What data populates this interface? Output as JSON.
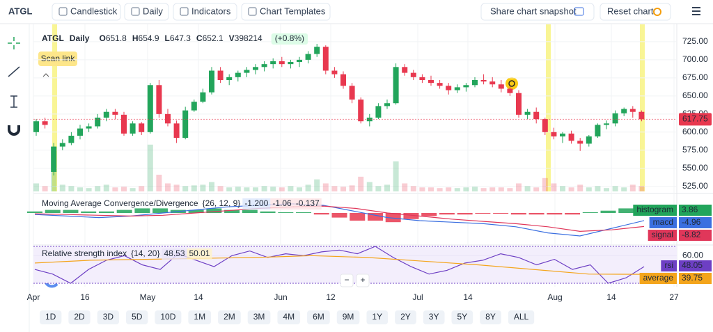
{
  "toolbar": {
    "symbol": "ATGL",
    "buttons": [
      "Candlestick",
      "Daily",
      "Indicators",
      "Chart Templates"
    ],
    "share": "Share chart snapshot",
    "reset": "Reset chart"
  },
  "scan_link": "Scan link",
  "zoom": [
    "−",
    "+"
  ],
  "ranges": [
    "1D",
    "2D",
    "3D",
    "5D",
    "10D",
    "1M",
    "2M",
    "3M",
    "4M",
    "6M",
    "9M",
    "1Y",
    "2Y",
    "3Y",
    "5Y",
    "8Y",
    "ALL"
  ],
  "chart_data": [
    {
      "type": "candlestick",
      "symbol": "ATGL",
      "interval": "Daily",
      "ohlcv": [
        {
          "label": "O",
          "value": 651.8
        },
        {
          "label": "H",
          "value": 654.9
        },
        {
          "label": "L",
          "value": 647.3
        },
        {
          "label": "C",
          "value": 652.1
        },
        {
          "label": "V",
          "value": 398214
        }
      ],
      "change": "(+0.8%)",
      "up_color": "#22a55b",
      "down_color": "#e8384f",
      "ohlc": [
        [
          600,
          618,
          595,
          615
        ],
        [
          615,
          620,
          605,
          610
        ],
        [
          545,
          585,
          540,
          580
        ],
        [
          580,
          590,
          575,
          585
        ],
        [
          585,
          600,
          582,
          595
        ],
        [
          595,
          610,
          590,
          605
        ],
        [
          605,
          612,
          600,
          608
        ],
        [
          608,
          625,
          605,
          620
        ],
        [
          620,
          632,
          615,
          628
        ],
        [
          628,
          632,
          618,
          624
        ],
        [
          624,
          628,
          595,
          598
        ],
        [
          598,
          615,
          595,
          612
        ],
        [
          612,
          614,
          596,
          600
        ],
        [
          600,
          668,
          598,
          665
        ],
        [
          665,
          672,
          620,
          625
        ],
        [
          625,
          632,
          608,
          612
        ],
        [
          612,
          616,
          585,
          592
        ],
        [
          592,
          635,
          590,
          630
        ],
        [
          630,
          645,
          628,
          642
        ],
        [
          642,
          660,
          640,
          655
        ],
        [
          655,
          690,
          652,
          685
        ],
        [
          685,
          690,
          668,
          672
        ],
        [
          672,
          680,
          665,
          676
        ],
        [
          676,
          685,
          670,
          682
        ],
        [
          682,
          690,
          676,
          686
        ],
        [
          686,
          694,
          680,
          690
        ],
        [
          690,
          698,
          684,
          694
        ],
        [
          694,
          702,
          688,
          698
        ],
        [
          698,
          704,
          690,
          694
        ],
        [
          694,
          700,
          688,
          697
        ],
        [
          697,
          704,
          690,
          700
        ],
        [
          700,
          712,
          695,
          708
        ],
        [
          708,
          722,
          704,
          718
        ],
        [
          718,
          720,
          680,
          685
        ],
        [
          685,
          690,
          675,
          680
        ],
        [
          680,
          684,
          660,
          664
        ],
        [
          664,
          668,
          640,
          645
        ],
        [
          645,
          648,
          612,
          615
        ],
        [
          615,
          625,
          608,
          620
        ],
        [
          620,
          640,
          618,
          636
        ],
        [
          636,
          645,
          632,
          640
        ],
        [
          640,
          695,
          638,
          690
        ],
        [
          690,
          694,
          678,
          682
        ],
        [
          682,
          686,
          672,
          676
        ],
        [
          676,
          680,
          668,
          672
        ],
        [
          672,
          678,
          664,
          668
        ],
        [
          668,
          672,
          660,
          664
        ],
        [
          664,
          668,
          652,
          658
        ],
        [
          658,
          666,
          654,
          662
        ],
        [
          662,
          668,
          656,
          665
        ],
        [
          665,
          676,
          662,
          672
        ],
        [
          672,
          680,
          666,
          670
        ],
        [
          670,
          676,
          662,
          666
        ],
        [
          666,
          672,
          655,
          660
        ],
        [
          660,
          664,
          650,
          654
        ],
        [
          654,
          658,
          620,
          624
        ],
        [
          624,
          632,
          618,
          628
        ],
        [
          628,
          634,
          612,
          618
        ],
        [
          618,
          620,
          596,
          600
        ],
        [
          600,
          606,
          590,
          594
        ],
        [
          594,
          600,
          585,
          598
        ],
        [
          598,
          602,
          584,
          588
        ],
        [
          588,
          592,
          574,
          584
        ],
        [
          584,
          596,
          580,
          594
        ],
        [
          594,
          612,
          592,
          610
        ],
        [
          610,
          616,
          604,
          612
        ],
        [
          612,
          630,
          608,
          626
        ],
        [
          626,
          634,
          622,
          632
        ],
        [
          632,
          636,
          620,
          628
        ],
        [
          628,
          630,
          615,
          617.75
        ]
      ],
      "volume": [
        12,
        8,
        30,
        10,
        8,
        6,
        5,
        8,
        10,
        6,
        7,
        5,
        8,
        70,
        25,
        12,
        10,
        8,
        9,
        10,
        14,
        8,
        6,
        7,
        6,
        6,
        8,
        7,
        6,
        8,
        6,
        10,
        18,
        12,
        8,
        7,
        9,
        22,
        14,
        8,
        10,
        45,
        12,
        8,
        6,
        6,
        5,
        6,
        5,
        6,
        7,
        5,
        6,
        6,
        5,
        12,
        8,
        6,
        20,
        12,
        8,
        6,
        10,
        6,
        8,
        5,
        8,
        6,
        10,
        8
      ],
      "volume_ylim": [
        0,
        250
      ],
      "ylim": [
        518,
        749
      ],
      "yticks": [
        {
          "value": 525,
          "label": "525.00"
        },
        {
          "value": 550,
          "label": "550.00"
        },
        {
          "value": 575,
          "label": "575.00"
        },
        {
          "value": 600,
          "label": "600.00"
        },
        {
          "value": 625,
          "label": "625.00"
        },
        {
          "value": 650,
          "label": "650.00"
        },
        {
          "value": 675,
          "label": "675.00"
        },
        {
          "value": 700,
          "label": "700.00"
        },
        {
          "value": 725,
          "label": "725.00"
        }
      ],
      "last_price": 617.75,
      "x_labels": [
        "Apr",
        "16",
        "May",
        "14",
        "Jun",
        "12",
        "Jul",
        "14",
        "Aug",
        "14",
        "27"
      ]
    },
    {
      "type": "macd",
      "title": "Moving Average Convergence/Divergence",
      "params": "{26, 12, 9}",
      "header_values": [
        "-1.200",
        "-1.06",
        "-0.137"
      ],
      "ylim": [
        -20,
        10
      ],
      "series": [
        {
          "name": "histogram",
          "style": "bar",
          "color": "#22a55b",
          "down_color": "#e8384f",
          "last": 3.86,
          "values": [
            1,
            2,
            2,
            1,
            1,
            2,
            3,
            3,
            2,
            2,
            3,
            2,
            2,
            1,
            0.5,
            0.5,
            -1,
            -3,
            -5,
            -5,
            -6,
            -4,
            -2,
            -1,
            -1,
            -0.5,
            -0.5,
            -1,
            -1,
            -1,
            -1,
            0.5,
            1.5,
            3,
            3.86
          ]
        },
        {
          "name": "macd",
          "style": "line",
          "color": "#3b6fe0",
          "last": -4.96,
          "values": [
            -1,
            -2,
            -3,
            -2,
            0,
            2,
            4,
            5,
            6,
            5,
            1,
            -3,
            -5,
            -6,
            -7,
            -9,
            -13,
            -15,
            -10,
            -4.96
          ]
        },
        {
          "name": "signal",
          "style": "line",
          "color": "#e0375a",
          "last": -8.82,
          "values": [
            -0.5,
            -1,
            -1.5,
            -2,
            -1.5,
            0,
            1.5,
            3,
            4,
            4.5,
            3,
            0,
            -2,
            -4,
            -5.5,
            -7,
            -9,
            -12,
            -11,
            -8.82
          ]
        }
      ]
    },
    {
      "type": "rsi",
      "title": "Relative strength index",
      "params": "{14, 20}",
      "header_values": [
        "48.53",
        "50.01"
      ],
      "ylim": [
        30,
        70
      ],
      "yticks": [
        {
          "value": 60,
          "label": "60.00"
        }
      ],
      "series": [
        {
          "name": "rsi",
          "color": "#6d3fc4",
          "last": 48.05,
          "values": [
            45,
            40,
            30,
            45,
            55,
            60,
            50,
            45,
            62,
            55,
            48,
            60,
            65,
            58,
            62,
            60,
            64,
            66,
            62,
            70,
            58,
            48,
            40,
            44,
            52,
            55,
            62,
            58,
            50,
            56,
            45,
            50,
            30,
            36,
            48.05
          ]
        },
        {
          "name": "average",
          "color": "#f4a51c",
          "last": 39.75,
          "values": [
            52,
            55,
            56,
            57,
            58,
            60,
            58,
            54,
            50,
            45,
            40,
            39.75
          ]
        }
      ]
    }
  ]
}
